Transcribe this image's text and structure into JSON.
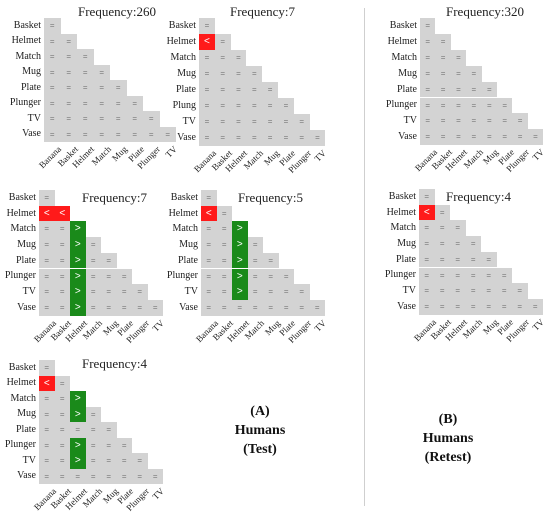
{
  "row_labels": [
    "Basket",
    "Helmet",
    "Match",
    "Mug",
    "Plate",
    "Plunger",
    "TV",
    "Vase"
  ],
  "col_labels": [
    "Banana",
    "Basket",
    "Helmet",
    "Match",
    "Mug",
    "Plate",
    "Plunger",
    "TV"
  ],
  "cell_symbols": {
    "neutral": "=",
    "less": "<",
    "greater": ">"
  },
  "colors": {
    "neutral": "#d3d3d3",
    "less": "#ff1a1a",
    "greater": "#1a8a1a"
  },
  "panels": [
    {
      "id": "A1",
      "frequency_label": "Frequency:260",
      "row_labels": [
        "Basket",
        "Helmet",
        "Match",
        "Mug",
        "Plate",
        "Plunger",
        "TV",
        "Vase"
      ],
      "red": [],
      "green": []
    },
    {
      "id": "A2",
      "frequency_label": "Frequency:7",
      "row_labels": [
        "Basket",
        "Helmet",
        "Match",
        "Mug",
        "Plate",
        "Plung",
        "TV",
        "Vase"
      ],
      "red": [
        [
          1,
          0
        ]
      ],
      "green": []
    },
    {
      "id": "A3",
      "frequency_label": "Frequency:7",
      "row_labels": [
        "Basket",
        "Helmet",
        "Match",
        "Mug",
        "Plate",
        "Plunger",
        "TV",
        "Vase"
      ],
      "red": [
        [
          1,
          0
        ],
        [
          1,
          1
        ]
      ],
      "green": [
        [
          2,
          2
        ],
        [
          3,
          2
        ],
        [
          4,
          2
        ],
        [
          5,
          2
        ],
        [
          6,
          2
        ],
        [
          7,
          2
        ]
      ]
    },
    {
      "id": "A4",
      "frequency_label": "Frequency:5",
      "row_labels": [
        "Basket",
        "Helmet",
        "Match",
        "Mug",
        "Plate",
        "Plunger",
        "TV",
        "Vase"
      ],
      "red": [
        [
          1,
          0
        ]
      ],
      "green": [
        [
          2,
          2
        ],
        [
          3,
          2
        ],
        [
          4,
          2
        ],
        [
          5,
          2
        ],
        [
          6,
          2
        ]
      ]
    },
    {
      "id": "A5",
      "frequency_label": "Frequency:4",
      "row_labels": [
        "Basket",
        "Helmet",
        "Match",
        "Mug",
        "Plate",
        "Plunger",
        "TV",
        "Vase"
      ],
      "red": [
        [
          1,
          0
        ]
      ],
      "green": [
        [
          2,
          2
        ],
        [
          3,
          2
        ],
        [
          5,
          2
        ],
        [
          6,
          2
        ]
      ]
    },
    {
      "id": "B1",
      "frequency_label": "Frequency:320",
      "row_labels": [
        "Basket",
        "Helmet",
        "Match",
        "Mug",
        "Plate",
        "Plunger",
        "TV",
        "Vase"
      ],
      "red": [],
      "green": []
    },
    {
      "id": "B2",
      "frequency_label": "Frequency:4",
      "row_labels": [
        "Basket",
        "Helmet",
        "Match",
        "Mug",
        "Plate",
        "Plunger",
        "TV",
        "Vase"
      ],
      "red": [
        [
          1,
          0
        ]
      ],
      "green": []
    }
  ],
  "captions": {
    "test": [
      "(A)",
      "Humans",
      "(Test)"
    ],
    "retest": [
      "(B)",
      "Humans",
      "(Retest)"
    ]
  }
}
